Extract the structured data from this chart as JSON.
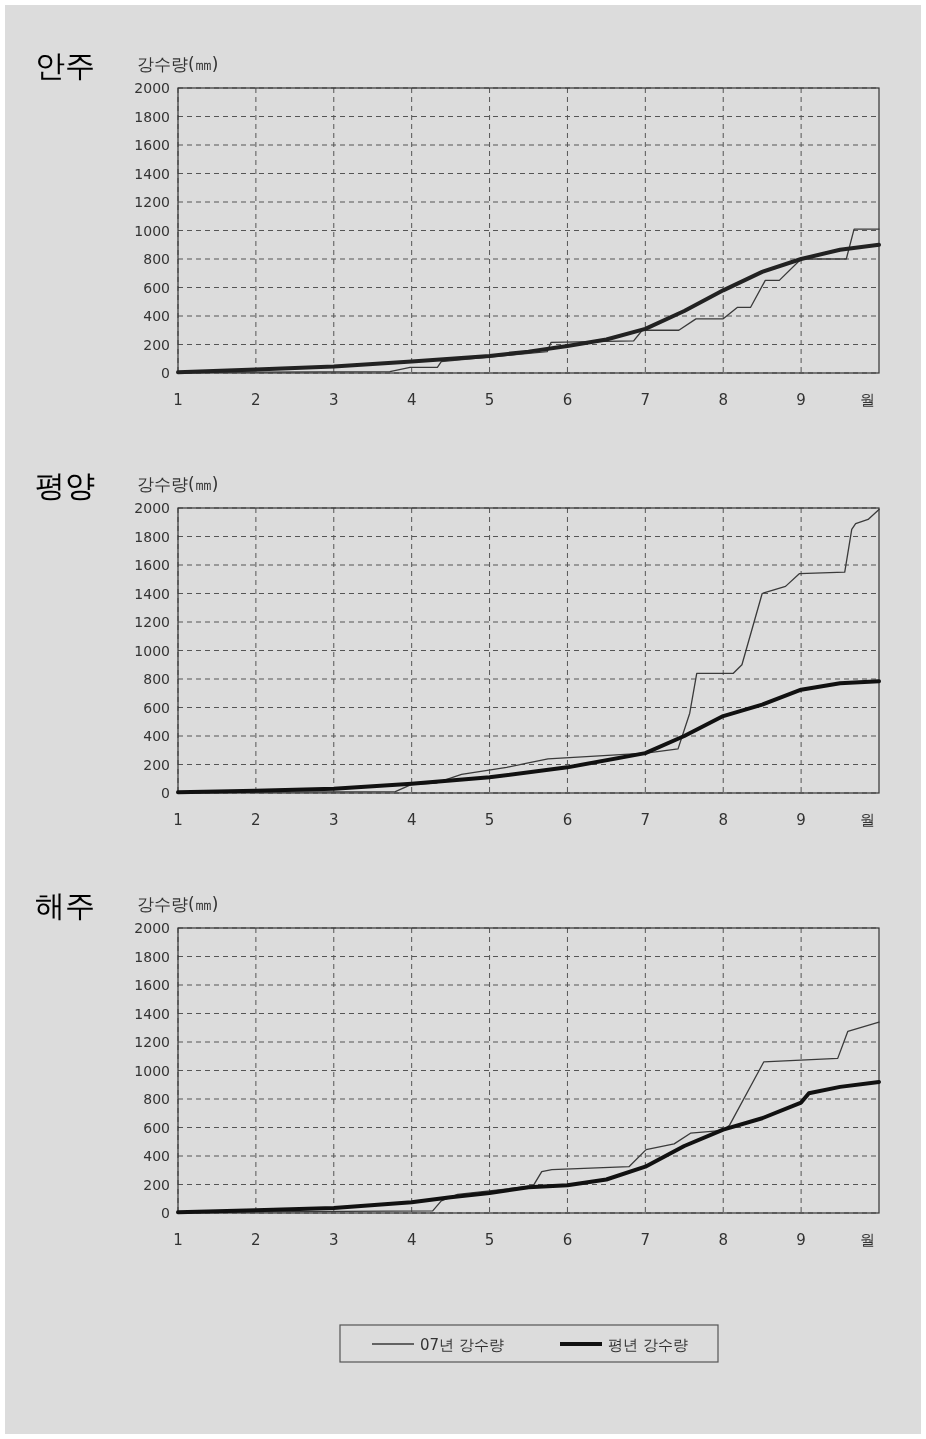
{
  "chart_data": [
    {
      "type": "line",
      "title": "안주",
      "ylabel": "강수량(㎜)",
      "xlabel": "월",
      "xlim": [
        1,
        10
      ],
      "ylim": [
        0,
        2000
      ],
      "xticks": [
        1,
        2,
        3,
        4,
        5,
        6,
        7,
        8,
        9
      ],
      "yticks": [
        0,
        200,
        400,
        600,
        800,
        1000,
        1200,
        1400,
        1600,
        1800,
        2000
      ],
      "grid": true,
      "line_style": "solid",
      "marker": "none",
      "series": [
        {
          "color": "#3a3a3a",
          "x": [
            1,
            3.72,
            3.98,
            4.33,
            4.38,
            5.74,
            5.79,
            6.85,
            6.96,
            7.43,
            7.65,
            8.0,
            8.18,
            8.35,
            8.54,
            8.72,
            9.0,
            9.58,
            9.68,
            10
          ],
          "values": [
            5,
            10,
            40,
            40,
            80,
            150,
            215,
            225,
            300,
            300,
            380,
            380,
            460,
            460,
            650,
            650,
            800,
            800,
            1010,
            1010
          ]
        },
        {
          "color": "#222222",
          "x": [
            1,
            2,
            3,
            4,
            5,
            5.5,
            6,
            6.5,
            7,
            7.5,
            8,
            8.5,
            9,
            9.5,
            10
          ],
          "values": [
            5,
            25,
            45,
            80,
            120,
            150,
            190,
            235,
            310,
            435,
            580,
            710,
            800,
            865,
            900
          ]
        }
      ]
    },
    {
      "type": "line",
      "title": "평양",
      "ylabel": "강수량(㎜)",
      "xlabel": "월",
      "xlim": [
        1,
        10
      ],
      "ylim": [
        0,
        2000
      ],
      "xticks": [
        1,
        2,
        3,
        4,
        5,
        6,
        7,
        8,
        9
      ],
      "yticks": [
        0,
        200,
        400,
        600,
        800,
        1000,
        1200,
        1400,
        1600,
        1800,
        2000
      ],
      "grid": true,
      "line_style": "solid",
      "marker": "none",
      "series": [
        {
          "color": "#3a3a3a",
          "x": [
            1,
            3.79,
            4.0,
            4.31,
            4.64,
            5.22,
            5.75,
            7.01,
            7.42,
            7.57,
            7.66,
            8.13,
            8.24,
            8.5,
            8.8,
            8.98,
            9.56,
            9.65,
            9.7,
            9.86,
            10
          ],
          "values": [
            5,
            10,
            60,
            70,
            130,
            180,
            240,
            280,
            310,
            560,
            840,
            840,
            900,
            1400,
            1450,
            1540,
            1550,
            1850,
            1890,
            1920,
            1990
          ]
        },
        {
          "color": "#111111",
          "x": [
            1,
            2,
            3,
            4,
            5,
            6,
            7,
            7.5,
            8,
            8.5,
            9,
            9.5,
            10
          ],
          "values": [
            5,
            15,
            30,
            65,
            110,
            180,
            280,
            400,
            540,
            620,
            725,
            770,
            785
          ]
        }
      ]
    },
    {
      "type": "line",
      "title": "해주",
      "ylabel": "강수량(㎜)",
      "xlabel": "월",
      "xlim": [
        1,
        10
      ],
      "ylim": [
        0,
        2000
      ],
      "xticks": [
        1,
        2,
        3,
        4,
        5,
        6,
        7,
        8,
        9
      ],
      "yticks": [
        0,
        200,
        400,
        600,
        800,
        1000,
        1200,
        1400,
        1600,
        1800,
        2000
      ],
      "grid": true,
      "line_style": "solid",
      "marker": "none",
      "legend": "bottom",
      "series": [
        {
          "name": "07년 강수량",
          "color": "#3a3a3a",
          "x": [
            1,
            4.27,
            4.38,
            4.59,
            5.56,
            5.67,
            5.8,
            6.79,
            7.01,
            7.37,
            7.58,
            8.0,
            8.08,
            8.52,
            9.47,
            9.6,
            10
          ],
          "values": [
            5,
            15,
            85,
            130,
            190,
            290,
            305,
            325,
            445,
            485,
            560,
            580,
            615,
            1060,
            1085,
            1275,
            1340
          ]
        },
        {
          "name": "평년 강수량",
          "color": "#111111",
          "x": [
            1,
            2,
            3,
            4,
            4.5,
            5,
            5.5,
            6,
            6.5,
            7,
            7.5,
            8,
            8.5,
            9,
            9.1,
            9.5,
            10
          ],
          "values": [
            5,
            20,
            35,
            75,
            110,
            140,
            180,
            195,
            235,
            325,
            470,
            585,
            665,
            775,
            840,
            885,
            920
          ]
        }
      ]
    }
  ]
}
